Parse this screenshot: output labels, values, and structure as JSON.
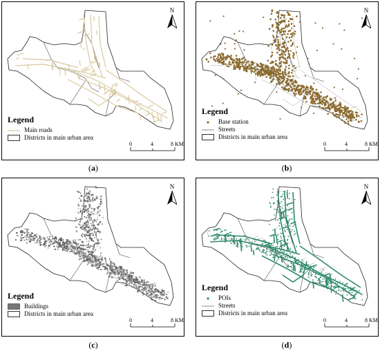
{
  "panels": [
    {
      "id": "a",
      "caption_letter": "a",
      "legend_title": "Legend",
      "legend_items": [
        {
          "label": "Main roads",
          "symbol": "line",
          "color": "#d8c9a0"
        },
        {
          "label": "Districts in main urban area",
          "symbol": "box",
          "color": "#000000"
        }
      ],
      "fill_style": "main-roads",
      "accent": "#d8c9a0"
    },
    {
      "id": "b",
      "caption_letter": "b",
      "legend_title": "Legend",
      "legend_items": [
        {
          "label": "Base station",
          "symbol": "dot",
          "color": "#8b6a2c"
        },
        {
          "label": "Streets",
          "symbol": "line",
          "color": "#a0a0a0"
        },
        {
          "label": "Districts in main urban area",
          "symbol": "box",
          "color": "#000000"
        }
      ],
      "fill_style": "base-stations",
      "accent": "#8b6a2c"
    },
    {
      "id": "c",
      "caption_letter": "c",
      "legend_title": "Legend",
      "legend_items": [
        {
          "label": "Buildings",
          "symbol": "filled",
          "color": "#777777"
        },
        {
          "label": "Districts in main urban area",
          "symbol": "box",
          "color": "#000000"
        }
      ],
      "fill_style": "buildings",
      "accent": "#777777"
    },
    {
      "id": "d",
      "caption_letter": "d",
      "legend_title": "Legend",
      "legend_items": [
        {
          "label": "POIs",
          "symbol": "dot",
          "color": "#2f8a6a"
        },
        {
          "label": "Streets",
          "symbol": "line",
          "color": "#a0a0a0"
        },
        {
          "label": "Districts in main urban area",
          "symbol": "box",
          "color": "#000000"
        }
      ],
      "fill_style": "pois",
      "accent": "#2f8a6a"
    }
  ],
  "north_arrow": {
    "label": "N",
    "icon": "north-arrow-icon"
  },
  "scale_bar": {
    "ticks": [
      "0",
      "4",
      "8 KM"
    ]
  },
  "caption_parens": {
    "open": "(",
    "close": ")"
  }
}
